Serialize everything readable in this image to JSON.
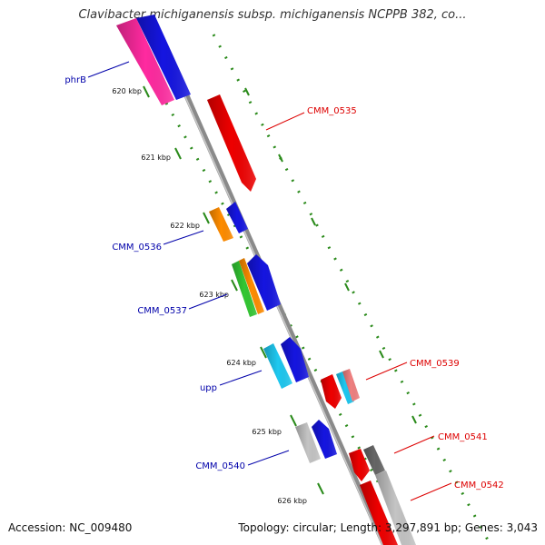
{
  "title": "Clavibacter michiganensis subsp. michiganensis NCPPB 382, co...",
  "footer": {
    "accession": "Accession: NC_009480",
    "topology": "Topology: circular; Length: 3,297,891 bp; Genes: 3,043"
  },
  "ticks": [
    "620 kbp",
    "621 kbp",
    "622 kbp",
    "623 kbp",
    "624 kbp",
    "625 kbp",
    "626 kbp"
  ],
  "labels": {
    "left": [
      "phrB",
      "CMM_0536",
      "CMM_0537",
      "upp",
      "CMM_0540"
    ],
    "right": [
      "CMM_0535",
      "CMM_0539",
      "CMM_0541",
      "CMM_0542"
    ]
  },
  "colors": {
    "left_label": "#0000aa",
    "right_label": "#dd0000",
    "backbone": "#888888",
    "tick_green": "#2a8a1a"
  }
}
